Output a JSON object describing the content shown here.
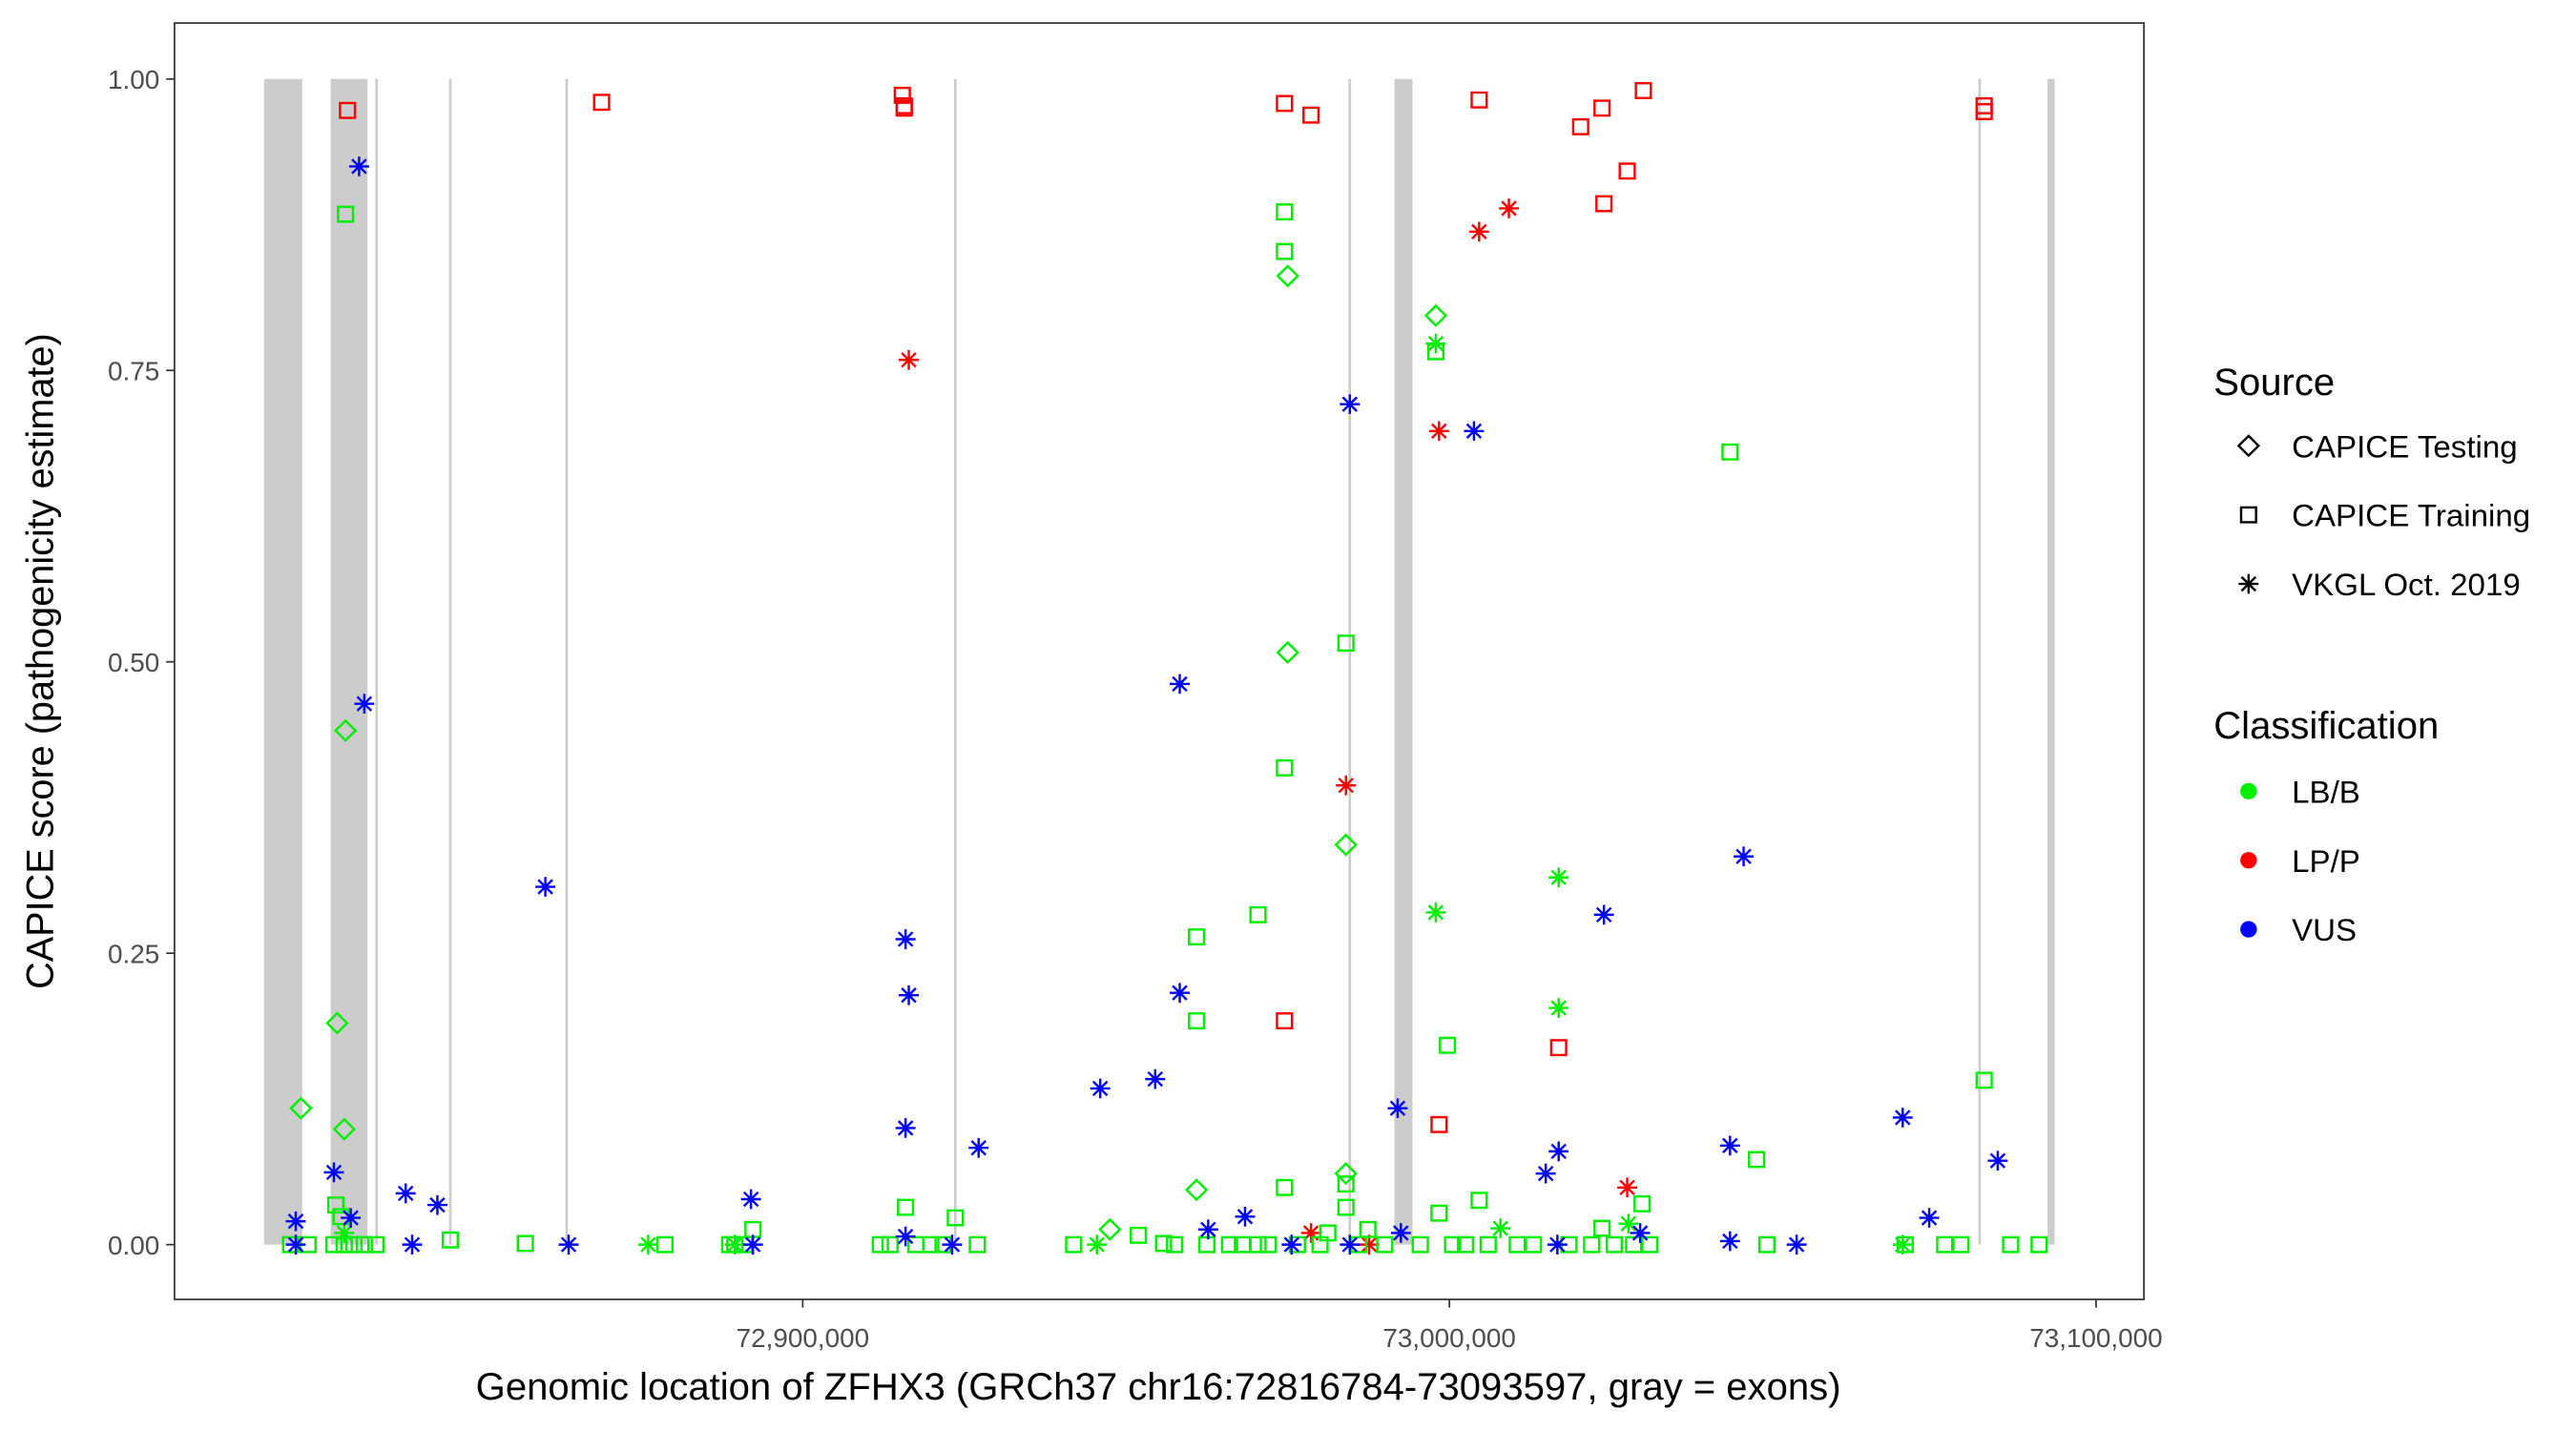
{
  "chart_data": {
    "type": "scatter",
    "xlabel": "Genomic location of ZFHX3 (GRCh37 chr16:72816784-73093597, gray = exons)",
    "ylabel": "CAPICE score (pathogenicity estimate)",
    "xlim": [
      72802850,
      73107400
    ],
    "ylim": [
      -0.047,
      1.048
    ],
    "grid": false,
    "x_ticks": [
      {
        "value": 72900000,
        "label": "72,900,000"
      },
      {
        "value": 73000000,
        "label": "73,000,000"
      },
      {
        "value": 73100000,
        "label": "73,100,000"
      }
    ],
    "y_ticks": [
      {
        "value": 0,
        "label": "0.00"
      },
      {
        "value": 0.25,
        "label": "0.25"
      },
      {
        "value": 0.5,
        "label": "0.50"
      },
      {
        "value": 0.75,
        "label": "0.75"
      },
      {
        "value": 1,
        "label": "1.00"
      }
    ],
    "exons": [
      [
        72816700,
        72822600
      ],
      [
        72827000,
        72832700
      ],
      [
        72833900,
        72834300
      ],
      [
        72845300,
        72845700
      ],
      [
        72863300,
        72863700
      ],
      [
        72923400,
        72923800
      ],
      [
        72984400,
        72984800
      ],
      [
        72991500,
        72994300
      ],
      [
        73081800,
        73082200
      ],
      [
        73092500,
        73093600
      ]
    ],
    "colors": {
      "LB/B": "#00EE00",
      "LP/P": "#FF0000",
      "VUS": "#0000FF",
      "exon": "#cccccc"
    },
    "legend": {
      "position": "right",
      "source_title": "Source",
      "source_items": [
        {
          "label": "CAPICE Testing",
          "shape": "diamond"
        },
        {
          "label": "CAPICE Training",
          "shape": "square"
        },
        {
          "label": "VKGL Oct. 2019",
          "shape": "asterisk"
        }
      ],
      "class_title": "Classification",
      "class_items": [
        {
          "label": "LB/B"
        },
        {
          "label": "LP/P"
        },
        {
          "label": "VUS"
        }
      ]
    },
    "series": [
      {
        "source": "CAPICE Training",
        "classification": "LP/P",
        "shape": "square",
        "points": [
          [
            72829600,
            0.973
          ],
          [
            72868900,
            0.98
          ],
          [
            72915400,
            0.986
          ],
          [
            72915700,
            0.977
          ],
          [
            72915700,
            0.975
          ],
          [
            72974500,
            0.979
          ],
          [
            72978600,
            0.969
          ],
          [
            73004600,
            0.982
          ],
          [
            73020300,
            0.959
          ],
          [
            73023600,
            0.975
          ],
          [
            73030000,
            0.99
          ],
          [
            73027500,
            0.921
          ],
          [
            73023900,
            0.893
          ],
          [
            73082700,
            0.977
          ],
          [
            73082700,
            0.972
          ],
          [
            72974500,
            0.192
          ],
          [
            73016900,
            0.169
          ],
          [
            72998400,
            0.103
          ]
        ]
      },
      {
        "source": "VKGL Oct. 2019",
        "classification": "LP/P",
        "shape": "asterisk",
        "points": [
          [
            72916400,
            0.759
          ],
          [
            72998400,
            0.698
          ],
          [
            73004600,
            0.869
          ],
          [
            73009200,
            0.889
          ],
          [
            72984000,
            0.394
          ],
          [
            73027500,
            0.049
          ],
          [
            72978600,
            0.01
          ],
          [
            72987600,
            0.0
          ]
        ]
      },
      {
        "source": "CAPICE Training",
        "classification": "LB/B",
        "shape": "square",
        "points": [
          [
            72829300,
            0.884
          ],
          [
            72974500,
            0.886
          ],
          [
            72974500,
            0.852
          ],
          [
            73043400,
            0.68
          ],
          [
            72997900,
            0.766
          ],
          [
            72984000,
            0.516
          ],
          [
            72974500,
            0.409
          ],
          [
            72970400,
            0.283
          ],
          [
            72960900,
            0.264
          ],
          [
            72960900,
            0.192
          ],
          [
            72999700,
            0.171
          ],
          [
            73082700,
            0.141
          ],
          [
            73047500,
            0.073
          ],
          [
            73004600,
            0.038
          ],
          [
            72974500,
            0.049
          ],
          [
            72984000,
            0.052
          ],
          [
            72984000,
            0.032
          ],
          [
            72998400,
            0.027
          ],
          [
            73029800,
            0.035
          ],
          [
            72915900,
            0.032
          ],
          [
            72923600,
            0.023
          ],
          [
            72827800,
            0.034
          ],
          [
            72828600,
            0.024
          ],
          [
            72845500,
            0.004
          ],
          [
            72857100,
            0.001
          ],
          [
            72878700,
            0.0
          ],
          [
            72889500,
            0.0
          ],
          [
            72892300,
            0.013
          ],
          [
            72927000,
            0.0
          ],
          [
            72941900,
            0.0
          ],
          [
            72951900,
            0.008
          ],
          [
            72955800,
            0.001
          ],
          [
            72970400,
            0.0
          ],
          [
            72981200,
            0.01
          ],
          [
            72987400,
            0.013
          ],
          [
            73023600,
            0.014
          ],
          [
            73049100,
            0.0
          ],
          [
            73076600,
            0.0
          ],
          [
            73079100,
            0.0
          ],
          [
            73086800,
            0.0
          ],
          [
            73091200,
            0.0
          ],
          [
            72820800,
            0.0
          ],
          [
            72823500,
            0.0
          ],
          [
            72827500,
            0.0
          ],
          [
            72829100,
            0.0
          ],
          [
            72830600,
            0.0
          ],
          [
            72832200,
            0.0
          ],
          [
            72834000,
            0.0
          ],
          [
            72888700,
            0.0
          ],
          [
            72891000,
            0.0
          ],
          [
            72912000,
            0.0
          ],
          [
            72913500,
            0.0
          ],
          [
            72917500,
            0.0
          ],
          [
            72919800,
            0.0
          ],
          [
            72921700,
            0.0
          ],
          [
            72957500,
            0.0
          ],
          [
            72962500,
            0.0
          ],
          [
            72966000,
            0.0
          ],
          [
            72968000,
            0.0
          ],
          [
            72972000,
            0.0
          ],
          [
            72976500,
            0.0
          ],
          [
            72980000,
            0.0
          ],
          [
            72986000,
            0.0
          ],
          [
            72990000,
            0.0
          ],
          [
            72995500,
            0.0
          ],
          [
            73000500,
            0.0
          ],
          [
            73002500,
            0.0
          ],
          [
            73006000,
            0.0
          ],
          [
            73010500,
            0.0
          ],
          [
            73013000,
            0.0
          ],
          [
            73018500,
            0.0
          ],
          [
            73022000,
            0.0
          ],
          [
            73025500,
            0.0
          ],
          [
            73028500,
            0.0
          ],
          [
            73031000,
            0.0
          ],
          [
            73070500,
            0.0
          ]
        ]
      },
      {
        "source": "CAPICE Testing",
        "classification": "LB/B",
        "shape": "diamond",
        "points": [
          [
            72975000,
            0.831
          ],
          [
            72997900,
            0.797
          ],
          [
            72975000,
            0.508
          ],
          [
            72984000,
            0.343
          ],
          [
            72829300,
            0.441
          ],
          [
            72828000,
            0.19
          ],
          [
            72822400,
            0.117
          ],
          [
            72829100,
            0.099
          ],
          [
            72960900,
            0.047
          ],
          [
            72984000,
            0.061
          ],
          [
            72947500,
            0.013
          ]
        ]
      },
      {
        "source": "VKGL Oct. 2019",
        "classification": "LB/B",
        "shape": "asterisk",
        "points": [
          [
            72997900,
            0.773
          ],
          [
            73016900,
            0.315
          ],
          [
            72997900,
            0.285
          ],
          [
            73016900,
            0.203
          ],
          [
            73007900,
            0.014
          ],
          [
            73027700,
            0.018
          ],
          [
            72876100,
            0.0
          ],
          [
            72889500,
            0.0
          ],
          [
            72945500,
            0.0
          ],
          [
            73070100,
            0.0
          ],
          [
            72829100,
            0.01
          ]
        ]
      },
      {
        "source": "VKGL Oct. 2019",
        "classification": "VUS",
        "shape": "asterisk",
        "points": [
          [
            72831400,
            0.925
          ],
          [
            72832200,
            0.464
          ],
          [
            72860200,
            0.307
          ],
          [
            72984600,
            0.721
          ],
          [
            73003800,
            0.698
          ],
          [
            72958300,
            0.481
          ],
          [
            72915900,
            0.262
          ],
          [
            72916400,
            0.214
          ],
          [
            72958300,
            0.216
          ],
          [
            72946000,
            0.134
          ],
          [
            72954500,
            0.142
          ],
          [
            72915900,
            0.1
          ],
          [
            72927200,
            0.083
          ],
          [
            72992000,
            0.117
          ],
          [
            73045500,
            0.333
          ],
          [
            73023900,
            0.283
          ],
          [
            73070100,
            0.109
          ],
          [
            73084800,
            0.072
          ],
          [
            73043400,
            0.085
          ],
          [
            73016900,
            0.08
          ],
          [
            73014900,
            0.061
          ],
          [
            72827500,
            0.062
          ],
          [
            72838600,
            0.044
          ],
          [
            72843500,
            0.034
          ],
          [
            72892000,
            0.039
          ],
          [
            73074200,
            0.023
          ],
          [
            72968400,
            0.024
          ],
          [
            72962700,
            0.013
          ],
          [
            72830100,
            0.023
          ],
          [
            72821600,
            0.02
          ],
          [
            72821600,
            0.0
          ],
          [
            72839600,
            0.0
          ],
          [
            72863800,
            0.0
          ],
          [
            72915900,
            0.007
          ],
          [
            72923100,
            0.0
          ],
          [
            72975600,
            0.0
          ],
          [
            72984600,
            0.0
          ],
          [
            72992500,
            0.01
          ],
          [
            73016700,
            0.0
          ],
          [
            73029500,
            0.01
          ],
          [
            73043400,
            0.003
          ],
          [
            73053700,
            0.0
          ],
          [
            72892300,
            0.0
          ]
        ]
      }
    ]
  }
}
